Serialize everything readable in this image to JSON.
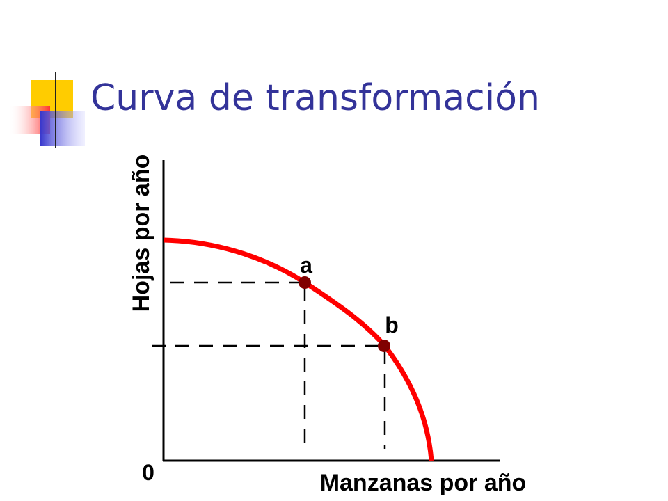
{
  "title": "Curva de transformación",
  "diagram": {
    "y_axis_label": "Hojas por año",
    "x_axis_label": "Manzanas por año",
    "origin_label": "0",
    "points": [
      {
        "label": "a"
      },
      {
        "label": "b"
      }
    ]
  }
}
